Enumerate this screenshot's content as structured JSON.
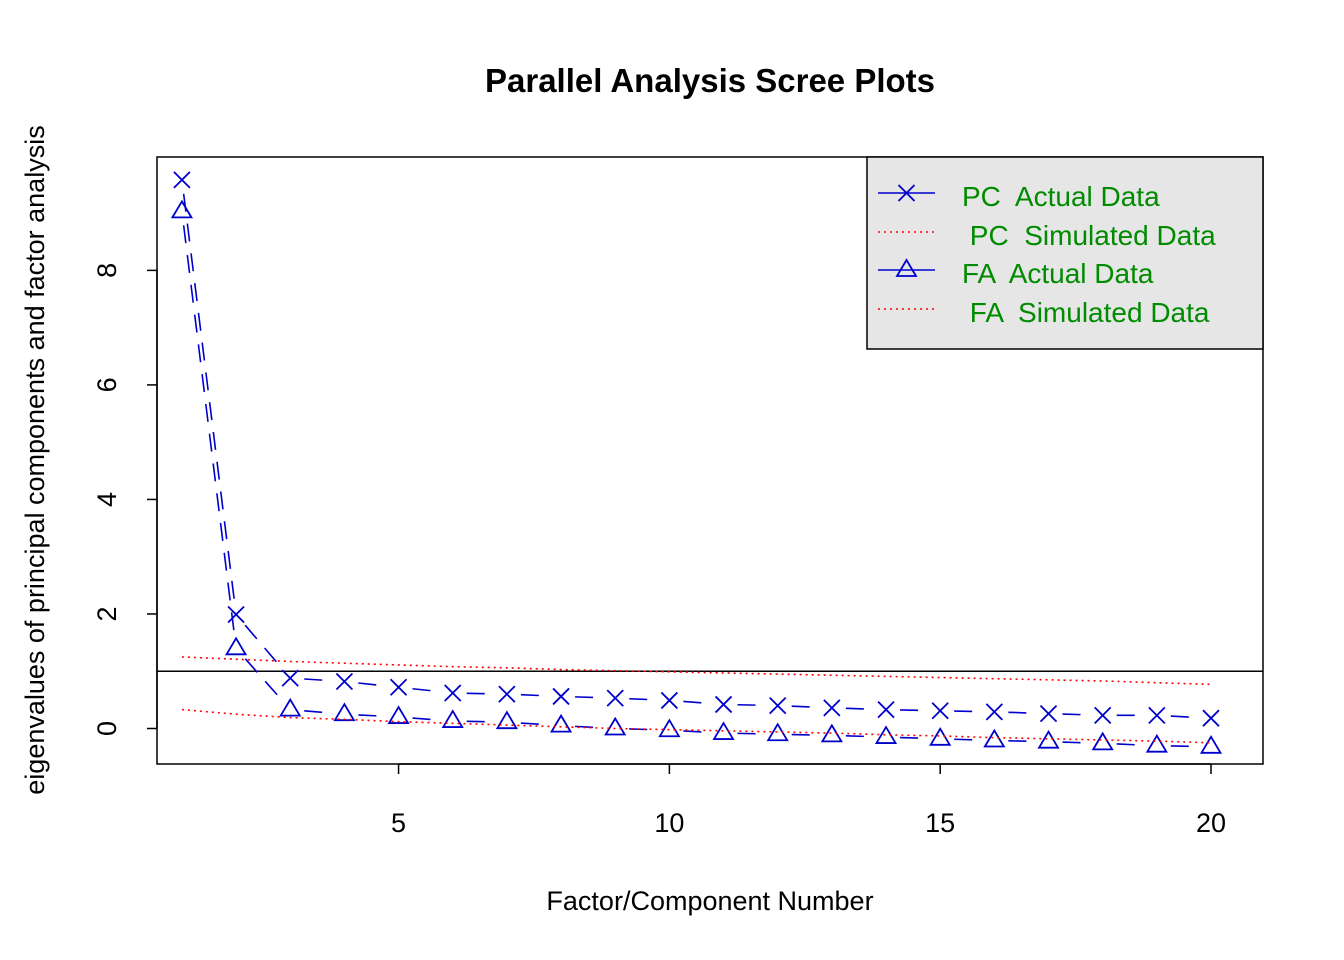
{
  "chart_data": {
    "type": "line",
    "title": "Parallel Analysis Scree Plots",
    "xlabel": "Factor/Component Number",
    "ylabel": "eigenvalues of principal components and factor analysis",
    "xlim": [
      0.54,
      20.96
    ],
    "ylim": [
      -0.62,
      9.98
    ],
    "x_ticks": [
      5,
      10,
      15,
      20
    ],
    "x_tick_labels": [
      "5",
      "10",
      "15",
      "20"
    ],
    "y_ticks": [
      0,
      2,
      4,
      6,
      8
    ],
    "y_tick_labels": [
      "0",
      "2",
      "4",
      "6",
      "8"
    ],
    "grid": false,
    "reference_line": 1,
    "x": [
      1,
      2,
      3,
      4,
      5,
      6,
      7,
      8,
      9,
      10,
      11,
      12,
      13,
      14,
      15,
      16,
      17,
      18,
      19,
      20
    ],
    "series": [
      {
        "name": "PC  Actual Data",
        "color": "#0000CD",
        "line": "dashed",
        "marker": "x",
        "values": [
          9.58,
          1.99,
          0.88,
          0.82,
          0.72,
          0.62,
          0.6,
          0.56,
          0.53,
          0.49,
          0.42,
          0.4,
          0.36,
          0.33,
          0.31,
          0.29,
          0.26,
          0.23,
          0.23,
          0.18
        ]
      },
      {
        "name": " PC  Simulated Data",
        "color": "#FF0000",
        "line": "dotted",
        "marker": "none",
        "values": [
          1.25,
          1.21,
          1.17,
          1.14,
          1.11,
          1.08,
          1.06,
          1.03,
          1.01,
          0.99,
          0.97,
          0.95,
          0.93,
          0.91,
          0.89,
          0.87,
          0.85,
          0.83,
          0.8,
          0.77
        ]
      },
      {
        "name": "FA  Actual Data",
        "color": "#0000CD",
        "line": "dashed",
        "marker": "triangle",
        "values": [
          9.03,
          1.4,
          0.33,
          0.25,
          0.2,
          0.13,
          0.11,
          0.05,
          0.0,
          -0.03,
          -0.08,
          -0.1,
          -0.12,
          -0.15,
          -0.18,
          -0.21,
          -0.23,
          -0.26,
          -0.3,
          -0.32
        ]
      },
      {
        "name": " FA  Simulated Data",
        "color": "#FF0000",
        "line": "dotted",
        "marker": "none",
        "values": [
          0.33,
          0.25,
          0.19,
          0.16,
          0.12,
          0.09,
          0.06,
          0.03,
          0.0,
          -0.02,
          -0.04,
          -0.06,
          -0.08,
          -0.11,
          -0.13,
          -0.16,
          -0.18,
          -0.2,
          -0.22,
          -0.25
        ]
      }
    ],
    "legend": {
      "position": "top-right",
      "background": "#E6E6E6",
      "text_color": "#008B00"
    }
  }
}
